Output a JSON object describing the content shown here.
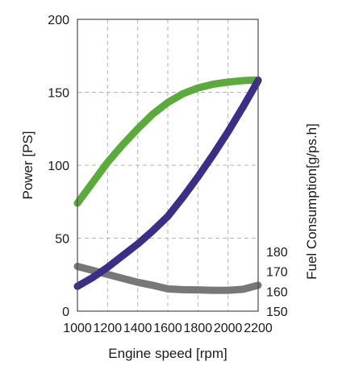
{
  "chart_data": {
    "type": "line",
    "xlabel": "Engine speed [rpm]",
    "ylabel": "Power [PS]",
    "y2label": "Fuel Consumption[g/ps.h]",
    "xlim": [
      1000,
      2200
    ],
    "ylim": [
      0,
      200
    ],
    "y2lim": [
      150,
      180
    ],
    "x_ticks": [
      "1000",
      "1200",
      "1400",
      "1600",
      "1800",
      "2000",
      "2200"
    ],
    "y_ticks": [
      "0",
      "50",
      "100",
      "150",
      "200"
    ],
    "y2_ticks": [
      "150",
      "160",
      "170",
      "180"
    ],
    "grid": true,
    "series": [
      {
        "axis": "y",
        "color": "#5aaa3c",
        "x": [
          1000,
          1100,
          1200,
          1300,
          1400,
          1500,
          1600,
          1700,
          1800,
          1900,
          2000,
          2100,
          2200
        ],
        "values": [
          74,
          88,
          102,
          114,
          125,
          135,
          143,
          149,
          153,
          155.5,
          157,
          158,
          158.5
        ]
      },
      {
        "axis": "y",
        "color": "#3c2e86",
        "x": [
          1000,
          1100,
          1200,
          1300,
          1400,
          1500,
          1600,
          1700,
          1800,
          1900,
          2000,
          2100,
          2200
        ],
        "values": [
          17,
          23,
          30,
          38,
          46,
          55,
          65,
          78,
          92,
          107,
          123,
          140,
          158
        ]
      },
      {
        "axis": "y2",
        "color": "#777777",
        "x": [
          1000,
          1100,
          1200,
          1300,
          1400,
          1500,
          1600,
          1700,
          1800,
          1900,
          2000,
          2100,
          2200
        ],
        "values": [
          172.5,
          170.5,
          168.5,
          166.5,
          164.5,
          163,
          161.2,
          160.8,
          160.7,
          160.5,
          160.5,
          161,
          163
        ]
      }
    ]
  }
}
